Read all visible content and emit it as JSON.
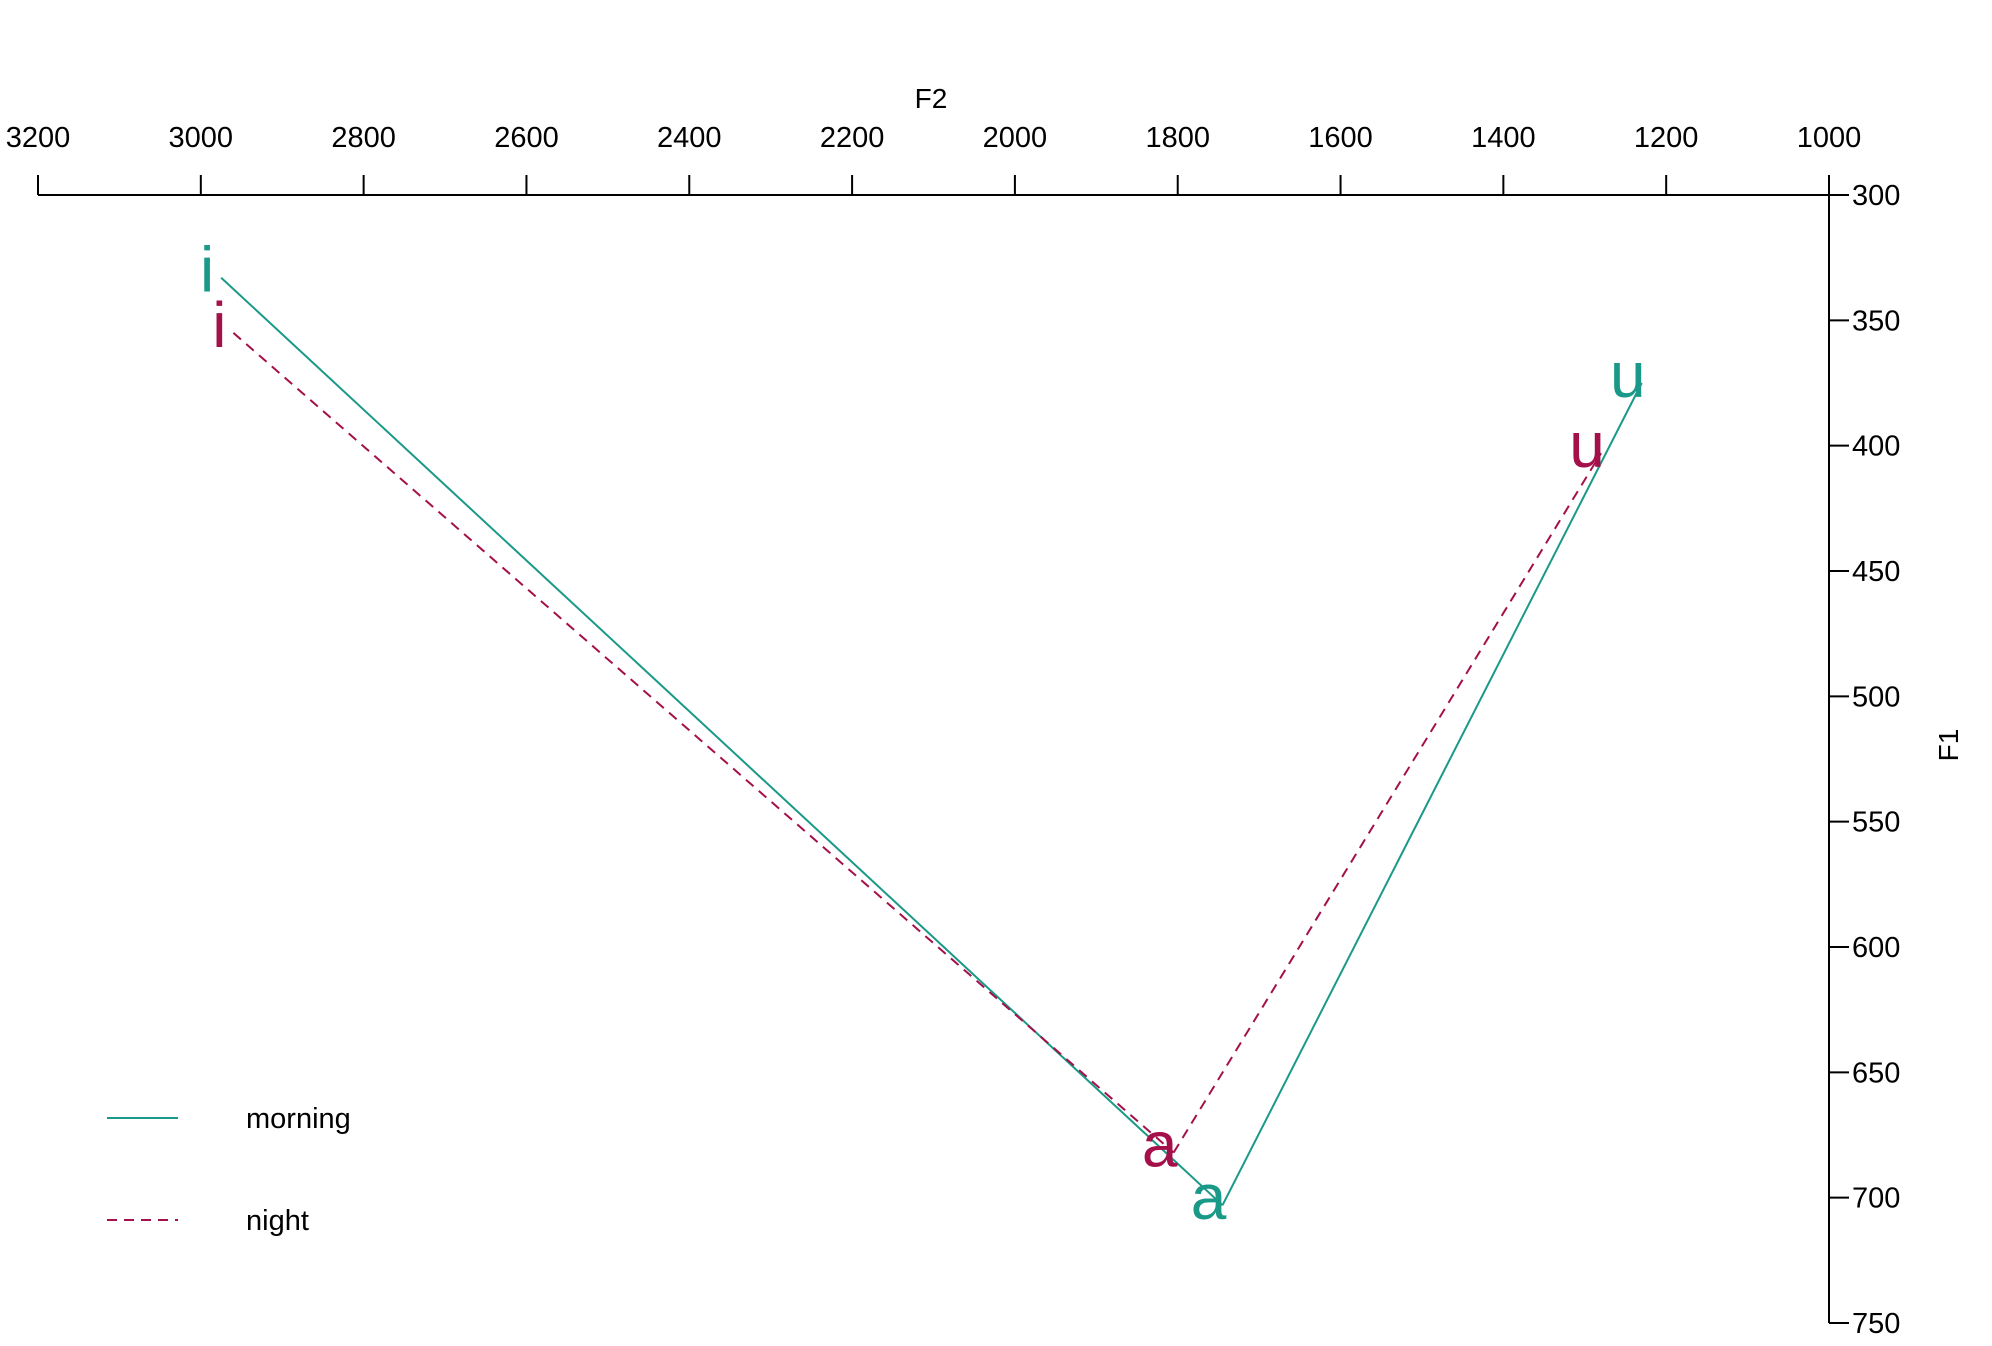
{
  "chart_data": {
    "type": "line",
    "title": "",
    "xlabel": "F2",
    "ylabel": "F1",
    "x_axis": {
      "position": "top",
      "reversed": true,
      "range": [
        3200,
        1000
      ],
      "ticks": [
        3200,
        3000,
        2800,
        2600,
        2400,
        2200,
        2000,
        1800,
        1600,
        1400,
        1200,
        1000
      ]
    },
    "y_axis": {
      "position": "right",
      "reversed": true,
      "range": [
        300,
        750
      ],
      "ticks": [
        300,
        350,
        400,
        450,
        500,
        550,
        600,
        650,
        700,
        750
      ]
    },
    "grid": false,
    "legend": {
      "placement": "bottom-left"
    },
    "series": [
      {
        "name": "morning",
        "color": "#1a9988",
        "line_style": "solid",
        "points": [
          {
            "label": "i",
            "x": 2975,
            "y": 333
          },
          {
            "label": "a",
            "x": 1745,
            "y": 703
          },
          {
            "label": "u",
            "x": 1230,
            "y": 375
          }
        ]
      },
      {
        "name": "night",
        "color": "#a4104a",
        "line_style": "dashed",
        "points": [
          {
            "label": "i",
            "x": 2960,
            "y": 355
          },
          {
            "label": "a",
            "x": 1805,
            "y": 682
          },
          {
            "label": "u",
            "x": 1280,
            "y": 403
          }
        ]
      }
    ]
  }
}
